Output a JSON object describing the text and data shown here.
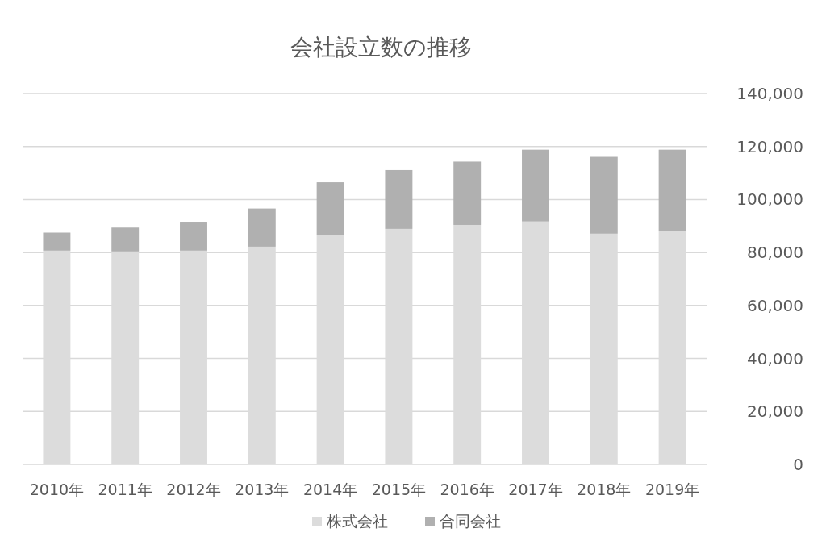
{
  "chart_data": {
    "type": "bar",
    "title": "会社設立数の推移",
    "stacked": true,
    "categories": [
      "2010年",
      "2011年",
      "2012年",
      "2013年",
      "2014年",
      "2015年",
      "2016年",
      "2017年",
      "2018年",
      "2019年"
    ],
    "series": [
      {
        "name": "株式会社",
        "color": "#dcdcdc",
        "values": [
          80700,
          80400,
          80700,
          82200,
          86600,
          88900,
          90400,
          91700,
          87100,
          88200
        ]
      },
      {
        "name": "合同会社",
        "color": "#b0b0b0",
        "values": [
          6800,
          9000,
          10900,
          14400,
          19900,
          22200,
          23900,
          27100,
          29000,
          30600
        ]
      }
    ],
    "ylim": [
      0,
      140000
    ],
    "yticks": [
      {
        "value": 0,
        "label": "0"
      },
      {
        "value": 20000,
        "label": "20,000"
      },
      {
        "value": 40000,
        "label": "40,000"
      },
      {
        "value": 60000,
        "label": "60,000"
      },
      {
        "value": 80000,
        "label": "80,000"
      },
      {
        "value": 100000,
        "label": "100,000"
      },
      {
        "value": 120000,
        "label": "120,000"
      },
      {
        "value": 140000,
        "label": "140,000"
      }
    ],
    "grid": "y",
    "legend": "bottom"
  }
}
